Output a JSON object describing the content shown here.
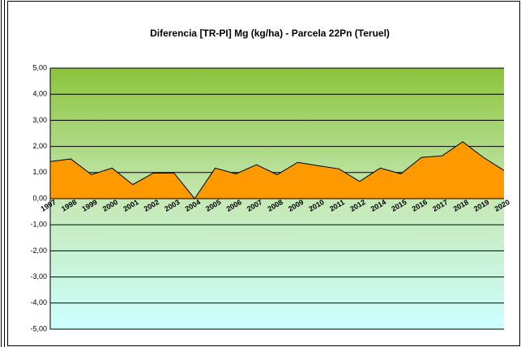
{
  "chart_data": {
    "type": "area",
    "title": "Diferencia [TR-PI] Mg (kg/ha) - Parcela 22Pn (Teruel)",
    "categories": [
      "1997",
      "1998",
      "1999",
      "2000",
      "2001",
      "2002",
      "2003",
      "2004",
      "2005",
      "2006",
      "2007",
      "2008",
      "2009",
      "2010",
      "2011",
      "2012",
      "2014",
      "2015",
      "2016",
      "2017",
      "2018",
      "2019",
      "2020"
    ],
    "values": [
      1.42,
      1.52,
      0.92,
      1.17,
      0.54,
      0.98,
      0.98,
      0,
      1.17,
      0.95,
      1.3,
      0.92,
      1.39,
      1.26,
      1.14,
      0.66,
      1.17,
      0.95,
      1.58,
      1.64,
      2.18,
      1.58,
      1.08
    ],
    "color": "#ff9900",
    "ylim": [
      -5,
      5
    ],
    "yticks": [
      {
        "value": 5,
        "label": "5,00"
      },
      {
        "value": 4,
        "label": "4,00"
      },
      {
        "value": 3,
        "label": "3,00"
      },
      {
        "value": 2,
        "label": "2,00"
      },
      {
        "value": 1,
        "label": "1,00"
      },
      {
        "value": 0,
        "label": "0,00"
      },
      {
        "value": -1,
        "label": "-1,00"
      },
      {
        "value": -2,
        "label": "-2,00"
      },
      {
        "value": -3,
        "label": "-3,00"
      },
      {
        "value": -4,
        "label": "-4,00"
      },
      {
        "value": -5,
        "label": "-5,00"
      }
    ],
    "grid": true
  }
}
